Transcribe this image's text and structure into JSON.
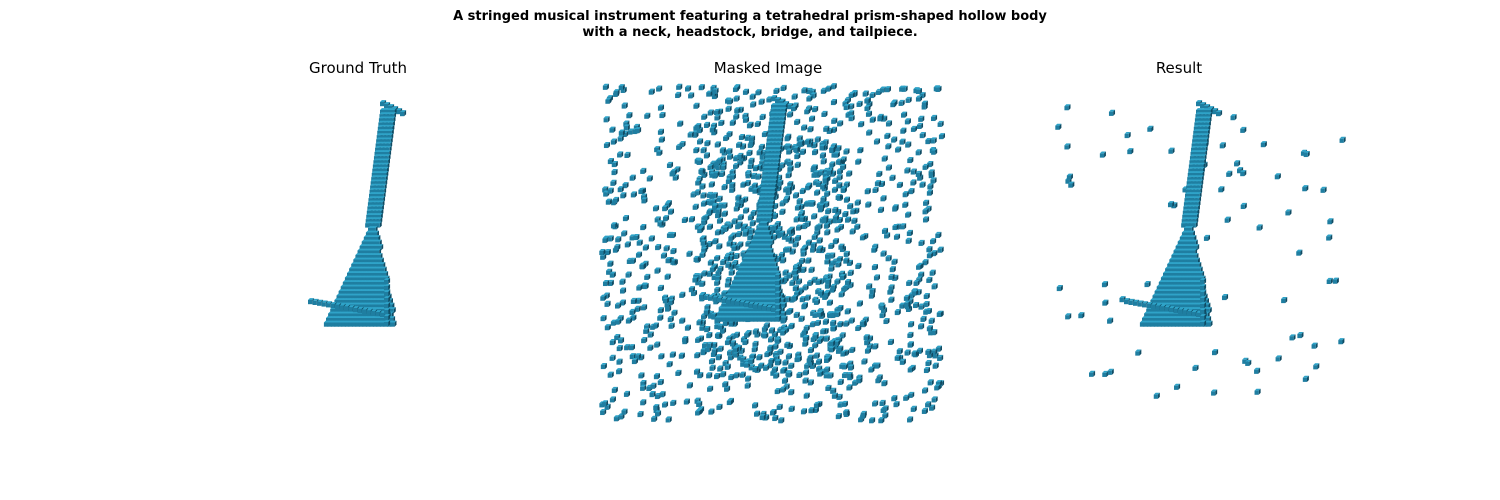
{
  "figure": {
    "title_line1": "A stringed musical instrument featuring a tetrahedral prism-shaped hollow body",
    "title_line2": "with a neck, headstock, bridge, and tailpiece."
  },
  "panels": [
    {
      "title": "Ground Truth"
    },
    {
      "title": "Masked Image"
    },
    {
      "title": "Result"
    }
  ],
  "colors": {
    "voxel_face": "#1f7ea1",
    "voxel_top": "#2fa3c8",
    "voxel_dark": "#0f4b63"
  }
}
